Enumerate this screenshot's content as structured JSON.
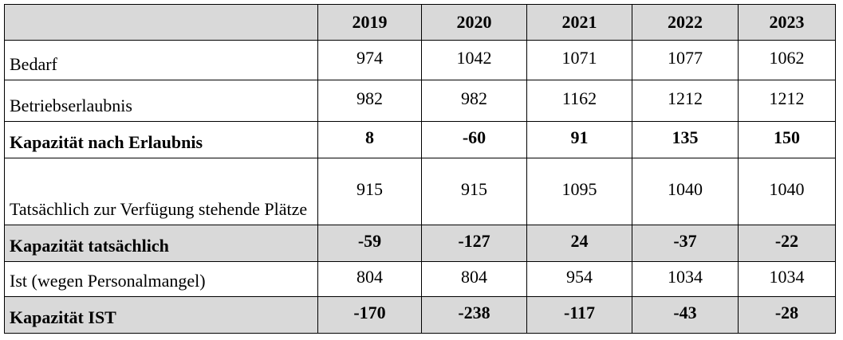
{
  "table": {
    "header": [
      "2019",
      "2020",
      "2021",
      "2022",
      "2023"
    ],
    "rows": [
      [
        "Bedarf",
        974,
        1042,
        1071,
        1077,
        1062
      ],
      [
        "Betriebserlaubnis",
        982,
        982,
        1162,
        1212,
        1212
      ],
      [
        "Kapazität nach Erlaubnis",
        8,
        -60,
        91,
        135,
        150
      ],
      [
        "Tatsächlich zur Verfügung stehende Plätze",
        915,
        915,
        1095,
        1040,
        1040
      ],
      [
        "Kapazität tatsächlich",
        -59,
        -127,
        24,
        -37,
        -22
      ],
      [
        "Ist (wegen Personalmangel)",
        804,
        804,
        954,
        1034,
        1034
      ],
      [
        "Kapazität IST",
        -170,
        -238,
        -117,
        -43,
        -28
      ]
    ]
  }
}
